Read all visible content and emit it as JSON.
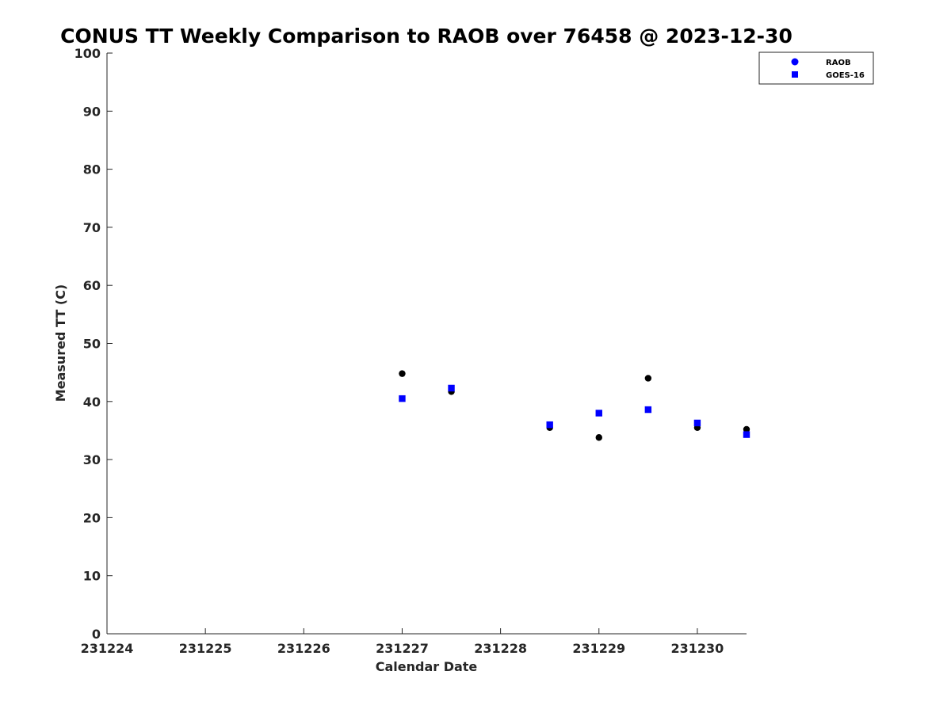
{
  "chart_data": {
    "type": "scatter",
    "title": "CONUS TT Weekly Comparison to RAOB over 76458 @ 2023-12-30",
    "xlabel": "Calendar Date",
    "ylabel": "Measured TT (C)",
    "xlim": [
      231224,
      231230.5
    ],
    "ylim": [
      0,
      100
    ],
    "x_ticks": [
      {
        "value": 231224,
        "label": "231224"
      },
      {
        "value": 231225,
        "label": "231225"
      },
      {
        "value": 231226,
        "label": "231226"
      },
      {
        "value": 231227,
        "label": "231227"
      },
      {
        "value": 231228,
        "label": "231228"
      },
      {
        "value": 231229,
        "label": "231229"
      },
      {
        "value": 231230,
        "label": "231230"
      }
    ],
    "y_ticks": [
      {
        "value": 0,
        "label": "0"
      },
      {
        "value": 10,
        "label": "10"
      },
      {
        "value": 20,
        "label": "20"
      },
      {
        "value": 30,
        "label": "30"
      },
      {
        "value": 40,
        "label": "40"
      },
      {
        "value": 50,
        "label": "50"
      },
      {
        "value": 60,
        "label": "60"
      },
      {
        "value": 70,
        "label": "70"
      },
      {
        "value": 80,
        "label": "80"
      },
      {
        "value": 90,
        "label": "90"
      },
      {
        "value": 100,
        "label": "100"
      }
    ],
    "grid": false,
    "legend_position": "top-right",
    "series": [
      {
        "name": "RAOB",
        "marker": "circle",
        "plot_color": "#000000",
        "legend_color": "#0000ff",
        "points": [
          {
            "x": 231227.0,
            "y": 44.8
          },
          {
            "x": 231227.5,
            "y": 41.7
          },
          {
            "x": 231228.5,
            "y": 35.5
          },
          {
            "x": 231229.0,
            "y": 33.8
          },
          {
            "x": 231229.5,
            "y": 44.0
          },
          {
            "x": 231230.0,
            "y": 35.5
          },
          {
            "x": 231230.5,
            "y": 35.2
          }
        ]
      },
      {
        "name": "GOES-16",
        "marker": "square",
        "plot_color": "#0000ff",
        "legend_color": "#0000ff",
        "points": [
          {
            "x": 231227.0,
            "y": 40.5
          },
          {
            "x": 231227.5,
            "y": 42.3
          },
          {
            "x": 231228.5,
            "y": 36.0
          },
          {
            "x": 231229.0,
            "y": 38.0
          },
          {
            "x": 231229.5,
            "y": 38.6
          },
          {
            "x": 231230.0,
            "y": 36.3
          },
          {
            "x": 231230.5,
            "y": 34.3
          }
        ]
      }
    ]
  }
}
